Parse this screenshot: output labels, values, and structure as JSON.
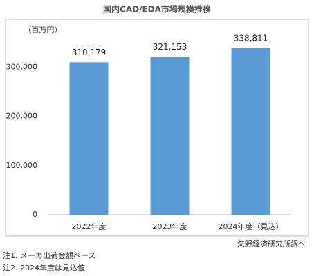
{
  "chart_data": {
    "type": "bar",
    "title": "国内CAD/EDA市場規模推移",
    "y_unit_label": "（百万円）",
    "categories": [
      "2022年度",
      "2023年度",
      "2024年度（見込）"
    ],
    "values": [
      310179,
      321153,
      338811
    ],
    "value_labels": [
      "310,179",
      "321,153",
      "338,811"
    ],
    "color": "#5b9bd5",
    "ylim": [
      0,
      350000
    ],
    "yticks": [
      0,
      {
        "value": 100000,
        "label": "100,000"
      },
      {
        "value": 200000,
        "label": "200,000"
      },
      {
        "value": 300000,
        "label": "300,000"
      }
    ],
    "grid": false,
    "source": "矢野経済研究所調べ",
    "notes": [
      "注1.  メーカ出荷金額ベース",
      "注2.  2024年度は見込値"
    ]
  }
}
